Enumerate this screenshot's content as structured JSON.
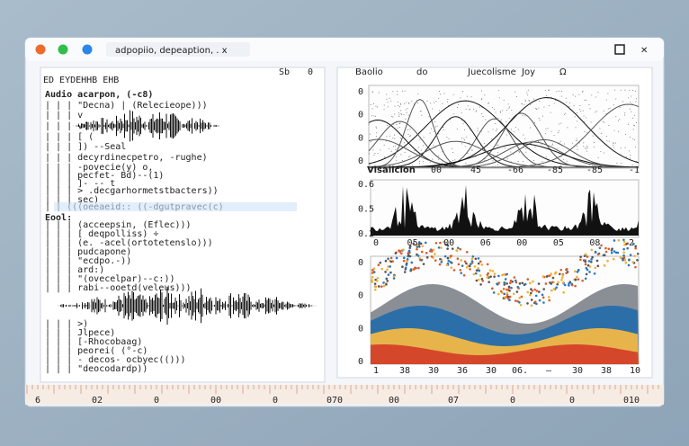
{
  "window": {
    "title": "adpopiio, depeaption, . x",
    "controls": [
      "✕"
    ]
  },
  "editor": {
    "header": "ED EYDEHHB EHB",
    "toolbar": [
      "Sb",
      "0"
    ],
    "lines": [
      "Audio acarpon, (-c8)",
      "| | |   \"Decna) | (Relecieope)))",
      "| | |   v",
      "| | |    v(",
      "| | |  [ (",
      "| | |  ]) --Seal",
      "| | |   decyrdinecpetro, -rughe)",
      "| | |   -povecie(y)   o,",
      "| | |    pecfet- Bd)--(1)",
      "| | |   ]-  --   t",
      "| | |   > .decgarhormetstbacters))",
      "| | |   sec)",
      "| |  (((oeeaeid:: ((-dgutpravec(c)",
      "Eool:",
      "| | |    (acceepsin, (Eflec)))",
      "| | |   [    deqpolliss)   ÷",
      "| | |   (e. -acel(ortotetenslo)))",
      "| | |    pudcapone)",
      "| | |   \"ecdpo.-))",
      "| | |    ard:)",
      "| | |   \"(ovecelpar)--c:))",
      "| | |     rabi--ooetd(veleus)))",
      "| | |   >)",
      "| | |    Jlpece)",
      "| | |   [-Rhocobaag)",
      "| | |    peorei( (°-c)",
      "| | |   - decos- ocbyec(()))",
      "| | |   \"deocodardp))"
    ]
  },
  "viewer": {
    "toolbar": [
      "Baolio",
      "do",
      "Juecolisme",
      "Joy",
      "Ω"
    ],
    "chart1": {
      "ylabels": [
        "0",
        "0",
        "0",
        "0"
      ],
      "title": "Visalicion",
      "xlabels": [
        "00",
        "45",
        "-66",
        "-85",
        "-85",
        "-1"
      ]
    },
    "chart2": {
      "ylabels": [
        "0.6",
        "0.5",
        "0.2"
      ],
      "xlabels": [
        "0",
        "05",
        "00",
        "06",
        "00",
        "05",
        "08",
        "2"
      ]
    },
    "chart3": {
      "ylabels": [
        "0",
        "0",
        "0",
        "0"
      ],
      "xlabels": [
        "1",
        "38",
        "30",
        "36",
        "30",
        "06.",
        "—",
        "30",
        "38",
        "10"
      ]
    }
  },
  "ruler": [
    "6",
    "02",
    "0",
    "00",
    "0",
    "070",
    "00",
    "07",
    "0",
    "0",
    "010"
  ]
}
